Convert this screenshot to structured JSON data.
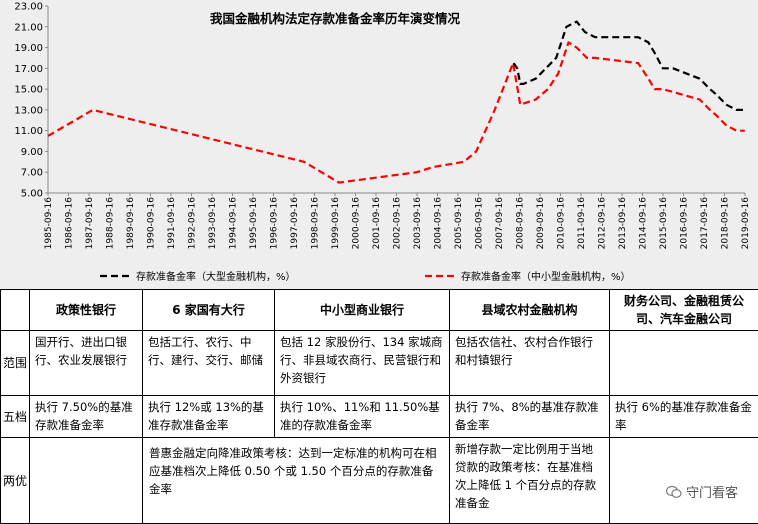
{
  "chart_data": {
    "type": "line",
    "title": "我国金融机构法定存款准备金率历年演变情况",
    "ylim": [
      5,
      23
    ],
    "yticks": [
      "5.00",
      "7.00",
      "9.00",
      "11.00",
      "13.00",
      "15.00",
      "17.00",
      "19.00",
      "21.00",
      "23.00"
    ],
    "xlim": [
      1985.71,
      2019.71
    ],
    "xticks": [
      "1985-09-16",
      "1986-09-16",
      "1987-09-16",
      "1988-09-16",
      "1989-09-16",
      "1990-09-16",
      "1991-09-16",
      "1992-09-16",
      "1993-09-16",
      "1994-09-16",
      "1995-09-16",
      "1996-09-16",
      "1997-09-16",
      "1998-09-16",
      "1999-09-16",
      "2000-09-16",
      "2001-09-16",
      "2002-09-16",
      "2003-09-16",
      "2004-09-16",
      "2005-09-16",
      "2006-09-16",
      "2007-09-16",
      "2008-09-16",
      "2009-09-16",
      "2010-09-16",
      "2011-09-16",
      "2012-09-16",
      "2013-09-16",
      "2014-09-16",
      "2015-09-16",
      "2016-09-16",
      "2017-09-16",
      "2018-09-16",
      "2019-09-16"
    ],
    "grid": false,
    "legend_position": "bottom",
    "series": [
      {
        "name": "存款准备金率（大型金融机构，%）",
        "color": "#000000",
        "style": "dashed",
        "x": [
          2008.42,
          2008.6,
          2008.75,
          2008.9,
          2009.5,
          2010.0,
          2010.5,
          2011.0,
          2011.5,
          2011.9,
          2012.4,
          2013.5,
          2014.5,
          2015.0,
          2015.3,
          2015.7,
          2016.2,
          2017.5,
          2018.0,
          2018.3,
          2018.8,
          2019.3,
          2019.7
        ],
        "y": [
          17.5,
          17.0,
          15.5,
          15.5,
          16.0,
          17.0,
          18.0,
          21.0,
          21.5,
          20.5,
          20.0,
          20.0,
          20.0,
          19.5,
          18.5,
          17.0,
          17.0,
          16.0,
          15.0,
          14.5,
          13.5,
          13.0,
          13.0
        ]
      },
      {
        "name": "存款准备金率（中小型金融机构，%）",
        "color": "#ff0000",
        "style": "dashed",
        "x": [
          1985.71,
          1987.9,
          1998.2,
          1999.9,
          2003.7,
          2004.5,
          2006.0,
          2006.6,
          2007.5,
          2008.4,
          2008.75,
          2009.5,
          2010.1,
          2010.6,
          2011.1,
          2011.5,
          2012.0,
          2012.4,
          2014.5,
          2015.0,
          2015.3,
          2015.7,
          2017.5,
          2018.0,
          2018.3,
          2018.8,
          2019.3,
          2019.7
        ],
        "y": [
          10.5,
          13.0,
          8.0,
          6.0,
          7.0,
          7.5,
          8.0,
          9.0,
          13.0,
          17.5,
          13.5,
          14.0,
          15.0,
          16.5,
          19.5,
          19.0,
          18.0,
          18.0,
          17.5,
          16.0,
          15.0,
          15.0,
          14.0,
          13.0,
          12.5,
          11.5,
          11.0,
          11.0
        ]
      }
    ]
  },
  "table": {
    "headers": [
      "",
      "政策性银行",
      "6 家国有大行",
      "中小型商业银行",
      "县域农村金融机构",
      "财务公司、金融租赁公司、汽车金融公司"
    ],
    "rows": {
      "scope": {
        "label": "范围",
        "cells": [
          "国开行、进出口银行、农业发展银行",
          "包括工行、农行、中行、建行、交行、邮储",
          "包括 12 家股份行、134 家城商行、非县域农商行、民营银行和外资银行",
          "包括农信社、农村合作银行和村镇银行",
          ""
        ]
      },
      "tier": {
        "label": "五档",
        "cells": [
          "执行 7.50%的基准存款准备金率",
          "执行 12%或 13%的基准存款准备金率",
          "执行 10%、11%和 11.50%基准的存款准备金率",
          "执行 7%、8%的基准存款准备金率",
          "执行 6%的基准存款准备金率"
        ]
      },
      "preference": {
        "label": "两优",
        "empty": "",
        "inclusive": "普惠金融定向降准政策考核：达到一定标准的机构可在相应基准档次上降低 0.50 个或 1.50 个百分点的存款准备金率",
        "county": "新增存款一定比例用于当地贷款的政策考核：在基准档次上降低 1 个百分点的存款准备金",
        "last": ""
      }
    }
  },
  "watermark": "守门看客"
}
